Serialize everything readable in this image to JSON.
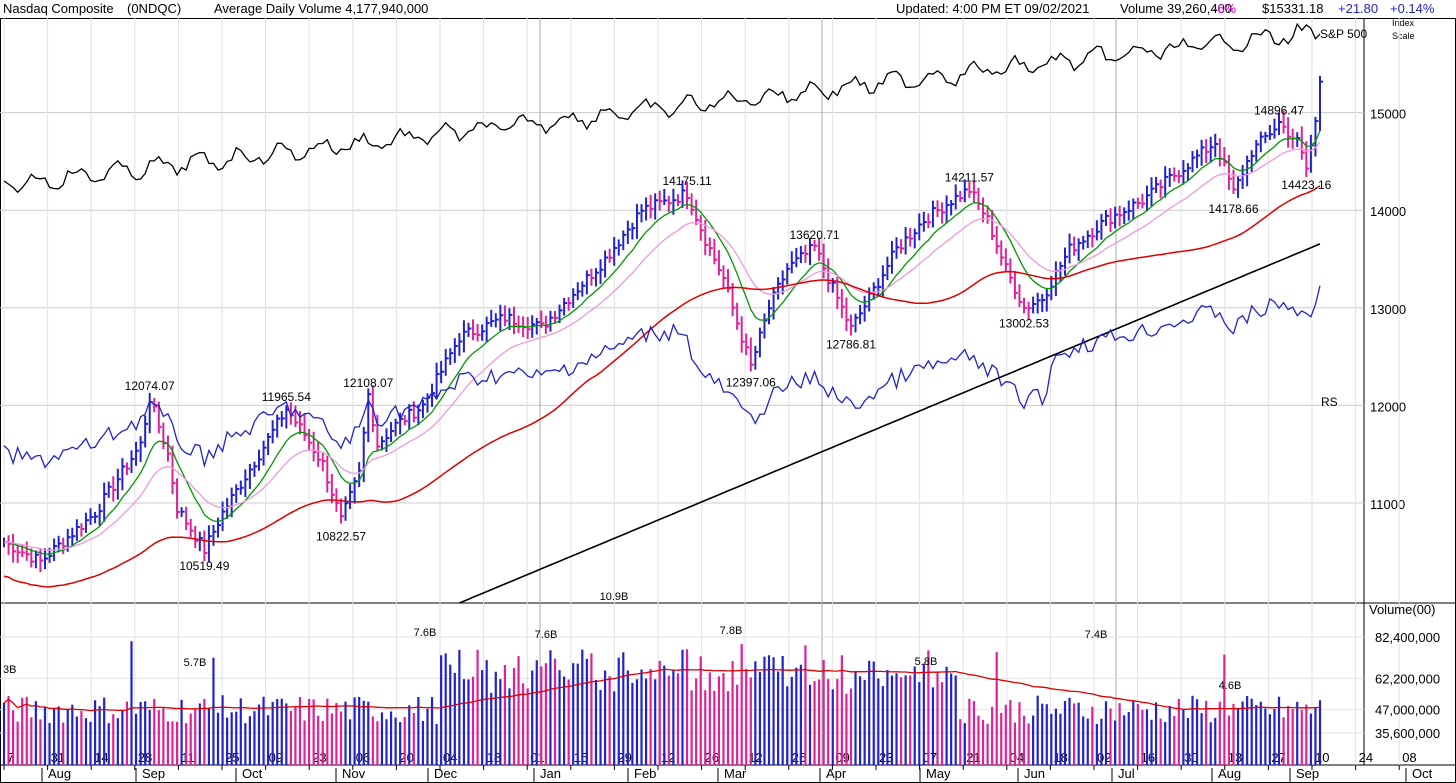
{
  "header": {
    "name": "Nasdaq Composite",
    "symbol": "(0NDQC)",
    "avg_volume": "Average Daily Volume 4,177,940,000",
    "updated": "Updated: 4:00 PM ET 09/02/2021",
    "volume": "Volume 39,260,400",
    "volume_change": "-6%",
    "price": "$15331.18",
    "change": "+21.80",
    "change_pct": "+0.14%",
    "index_scale_1": "Index",
    "index_scale_2": "Scale"
  },
  "colors": {
    "up_bar": "#2222cc",
    "down_bar": "#dd2299",
    "ema10": "#009900",
    "ema21": "#ee99dd",
    "sma50": "#dd0000",
    "sma200": "#000000",
    "sp500": "#000000",
    "rs": "#2222cc",
    "vol_avg": "#dd0000",
    "change_up": "#2222cc",
    "change_down": "#cc00cc"
  },
  "chart_data": [
    {
      "type": "line",
      "title": "Nasdaq Composite (0NDQC) daily",
      "y_axis_ticks": [
        11000,
        12000,
        13000,
        14000,
        15000
      ],
      "ylim": [
        10000,
        16000
      ],
      "day_ticks": [
        "7",
        "31",
        "14",
        "28",
        "11",
        "25",
        "09",
        "23",
        "06",
        "20",
        "04",
        "18",
        "01",
        "15",
        "29",
        "12",
        "26",
        "12",
        "26",
        "09",
        "23",
        "07",
        "21",
        "04",
        "18",
        "02",
        "16",
        "30",
        "13",
        "27",
        "10",
        "24",
        "08"
      ],
      "month_labels": [
        "Aug",
        "Sep",
        "Oct",
        "Nov",
        "Dec",
        "Jan",
        "Feb",
        "Mar",
        "Apr",
        "May",
        "Jun",
        "Jul",
        "Aug",
        "Sep",
        "Oct"
      ],
      "series": [
        {
          "name": "Nasdaq Composite",
          "kind": "price bars"
        },
        {
          "name": "10-day EMA",
          "kind": "line"
        },
        {
          "name": "21-day EMA",
          "kind": "line"
        },
        {
          "name": "50-day MA",
          "kind": "line"
        },
        {
          "name": "200-day MA",
          "kind": "line"
        },
        {
          "name": "S&P 500",
          "kind": "line",
          "label": "S&P 500"
        },
        {
          "name": "Relative Strength",
          "kind": "line",
          "label": "RS"
        }
      ],
      "price_annotations": [
        {
          "label": "12074.07",
          "value": 12074.07
        },
        {
          "label": "10519.49",
          "value": 10519.49
        },
        {
          "label": "11965.54",
          "value": 11965.54
        },
        {
          "label": "10822.57",
          "value": 10822.57
        },
        {
          "label": "12108.07",
          "value": 12108.07
        },
        {
          "label": "14175.11",
          "value": 14175.11
        },
        {
          "label": "12397.06",
          "value": 12397.06
        },
        {
          "label": "13620.71",
          "value": 13620.71
        },
        {
          "label": "12786.81",
          "value": 12786.81
        },
        {
          "label": "14211.57",
          "value": 14211.57
        },
        {
          "label": "13002.53",
          "value": 13002.53
        },
        {
          "label": "14178.66",
          "value": 14178.66
        },
        {
          "label": "14896.47",
          "value": 14896.47
        },
        {
          "label": "14423.16",
          "value": 14423.16
        }
      ],
      "sp500_label": "S&P 500",
      "rs_label": "RS"
    },
    {
      "type": "bar",
      "title": "Volume(00)",
      "y_axis_ticks": [
        "82,400,000",
        "62,200,000",
        "47,000,000",
        "35,600,000"
      ],
      "annotations": [
        "3B",
        "5.7B",
        "7.6B",
        "7.6B",
        "10.9B",
        "7.8B",
        "5.8B",
        "7.4B",
        "4.6B"
      ],
      "series": [
        {
          "name": "Daily Volume",
          "kind": "bars"
        },
        {
          "name": "50-day average volume",
          "kind": "line"
        }
      ]
    }
  ]
}
